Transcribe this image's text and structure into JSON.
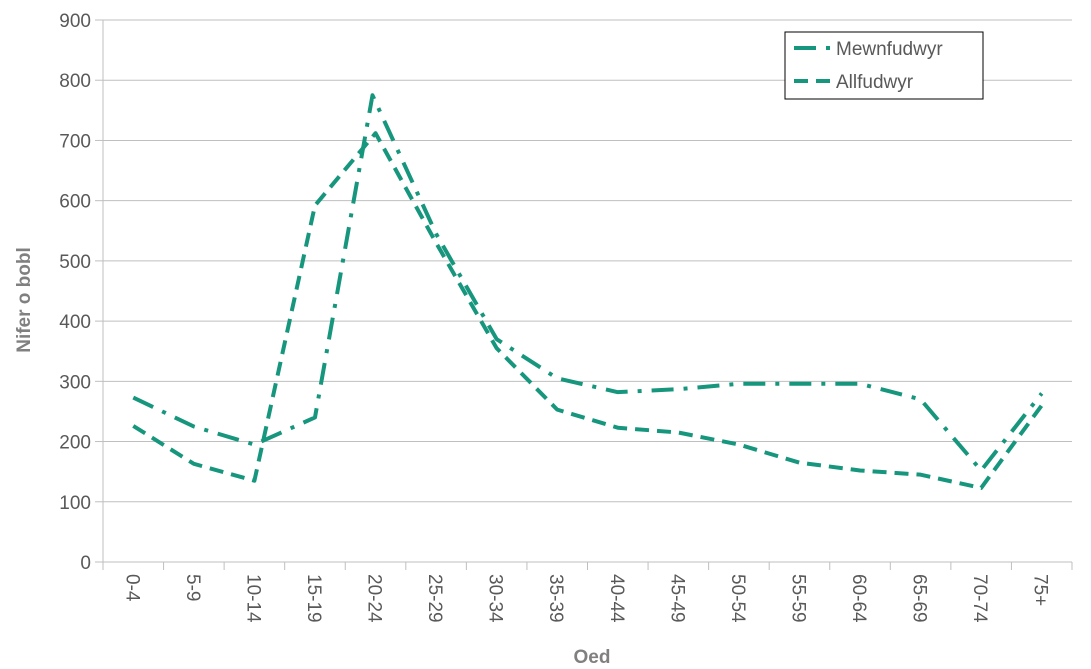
{
  "chart_data": {
    "type": "line",
    "xlabel": "Oed",
    "ylabel": "Nifer o bobl",
    "categories": [
      "0-4",
      "5-9",
      "10-14",
      "15-19",
      "20-24",
      "25-29",
      "30-34",
      "35-39",
      "40-44",
      "45-49",
      "50-54",
      "55-59",
      "60-64",
      "65-69",
      "70-74",
      "75+"
    ],
    "ylim": [
      0,
      900
    ],
    "yticks": [
      0,
      100,
      200,
      300,
      400,
      500,
      600,
      700,
      800,
      900
    ],
    "grid": true,
    "legend_position": "top-right",
    "series": [
      {
        "name": "Mewnfudwyr",
        "color": "#17967E",
        "dash": "dash-dot",
        "points": [
          {
            "x": "0-4",
            "y": 273
          },
          {
            "x": "5-9",
            "y": 225
          },
          {
            "x": "10-14",
            "y": 195
          },
          {
            "x": "15-19",
            "y": 240
          },
          {
            "x": "20-24",
            "y": 775,
            "offset": 0.45
          },
          {
            "x": "25-29",
            "y": 545
          },
          {
            "x": "30-34",
            "y": 370
          },
          {
            "x": "35-39",
            "y": 305
          },
          {
            "x": "40-44",
            "y": 282
          },
          {
            "x": "45-49",
            "y": 287
          },
          {
            "x": "50-54",
            "y": 296
          },
          {
            "x": "55-59",
            "y": 296
          },
          {
            "x": "60-64",
            "y": 296
          },
          {
            "x": "65-69",
            "y": 270
          },
          {
            "x": "70-74",
            "y": 152
          },
          {
            "x": "75+",
            "y": 280
          }
        ]
      },
      {
        "name": "Allfudwyr",
        "color": "#17967E",
        "dash": "dash",
        "points": [
          {
            "x": "0-4",
            "y": 226
          },
          {
            "x": "5-9",
            "y": 163
          },
          {
            "x": "10-14",
            "y": 135
          },
          {
            "x": "15-19",
            "y": 592
          },
          {
            "x": "20-24",
            "y": 712
          },
          {
            "x": "25-29",
            "y": 530
          },
          {
            "x": "30-34",
            "y": 355
          },
          {
            "x": "35-39",
            "y": 253
          },
          {
            "x": "40-44",
            "y": 223
          },
          {
            "x": "45-49",
            "y": 215
          },
          {
            "x": "50-54",
            "y": 195
          },
          {
            "x": "55-59",
            "y": 165
          },
          {
            "x": "60-64",
            "y": 152
          },
          {
            "x": "65-69",
            "y": 145
          },
          {
            "x": "70-74",
            "y": 123
          },
          {
            "x": "75+",
            "y": 260
          }
        ]
      }
    ]
  }
}
